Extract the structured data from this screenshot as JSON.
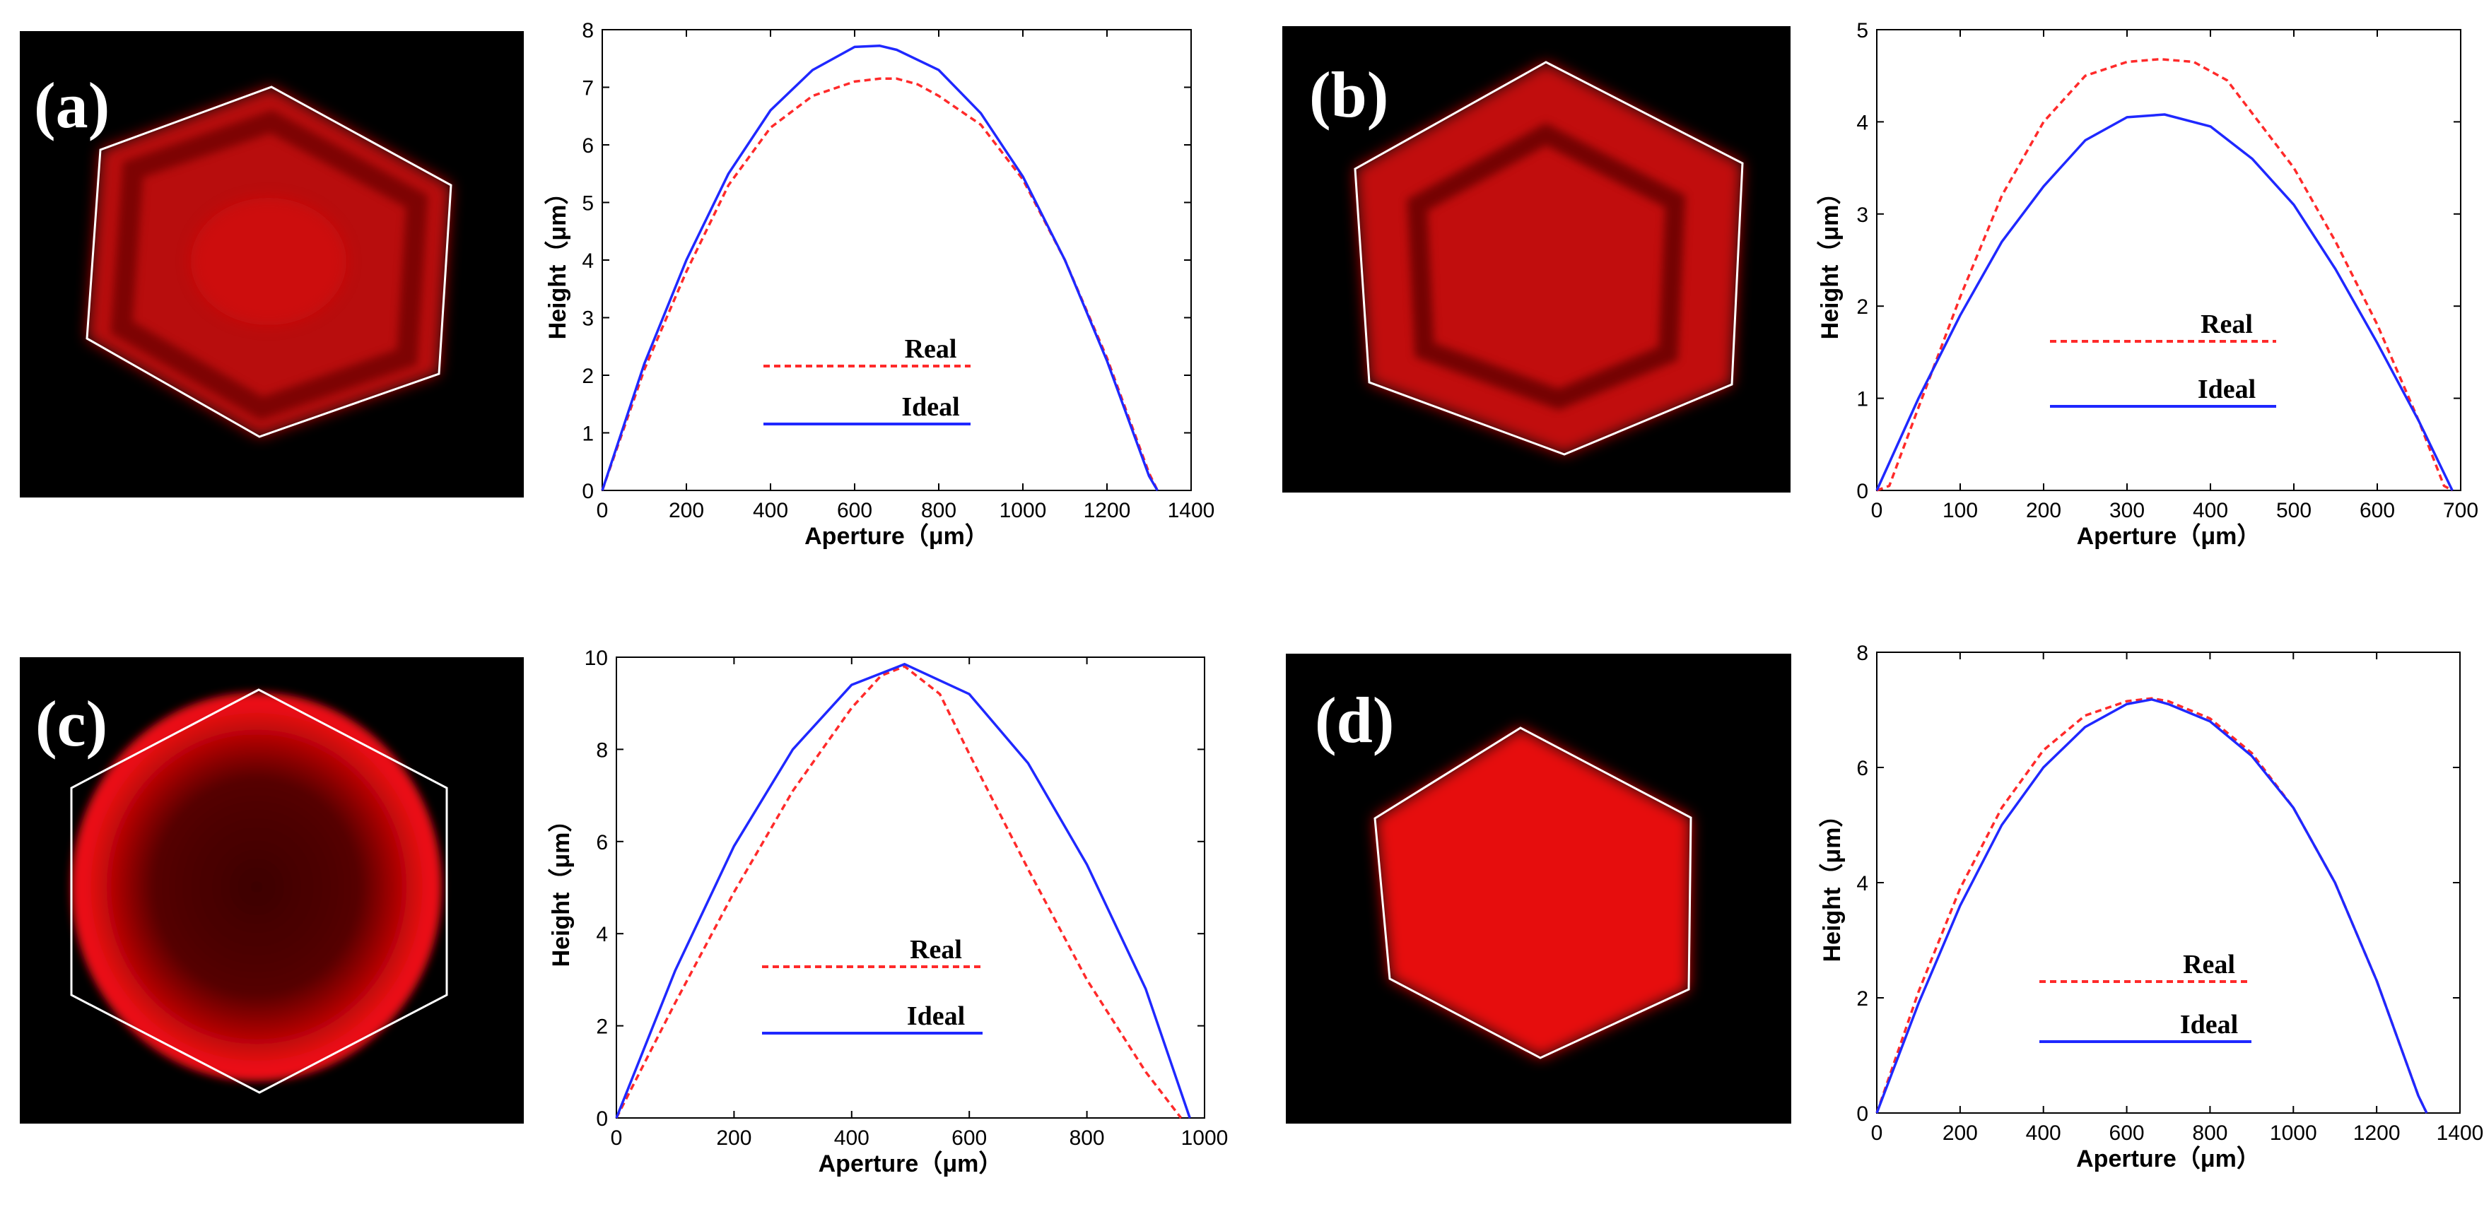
{
  "colors": {
    "real": "#ff2a2a",
    "ideal": "#1f28ff",
    "background": "#ffffff",
    "image_background": "#000000",
    "spot_red": "#e6070a"
  },
  "panels": [
    {
      "label": "(a)"
    },
    {
      "label": "(b)"
    },
    {
      "label": "(c)"
    },
    {
      "label": "(d)"
    }
  ],
  "chart_data": [
    {
      "panel": "(a)",
      "type": "line",
      "xlabel": "Aperture（μm）",
      "ylabel": "Height（μm）",
      "xlim": [
        0,
        1400
      ],
      "ylim": [
        0,
        8
      ],
      "xticks": [
        0,
        200,
        400,
        600,
        800,
        1000,
        1200,
        1400
      ],
      "yticks": [
        0,
        1,
        2,
        3,
        4,
        5,
        6,
        7,
        8
      ],
      "legend": {
        "entries": [
          "Real",
          "Ideal"
        ],
        "placement": "lower-center"
      },
      "series": [
        {
          "name": "Real",
          "style": "dashed",
          "x": [
            0,
            100,
            200,
            300,
            400,
            500,
            600,
            660,
            700,
            750,
            800,
            900,
            1000,
            1100,
            1200,
            1300,
            1320
          ],
          "y": [
            0,
            2.1,
            3.8,
            5.3,
            6.3,
            6.85,
            7.1,
            7.15,
            7.15,
            7.05,
            6.85,
            6.35,
            5.4,
            4.0,
            2.3,
            0.3,
            0
          ]
        },
        {
          "name": "Ideal",
          "style": "solid",
          "x": [
            0,
            100,
            200,
            300,
            400,
            500,
            600,
            660,
            700,
            800,
            900,
            1000,
            1100,
            1200,
            1300,
            1320
          ],
          "y": [
            0,
            2.2,
            4.0,
            5.5,
            6.6,
            7.3,
            7.7,
            7.72,
            7.65,
            7.3,
            6.55,
            5.45,
            4.0,
            2.25,
            0.25,
            0
          ]
        }
      ]
    },
    {
      "panel": "(b)",
      "type": "line",
      "xlabel": "Aperture（μm）",
      "ylabel": "Height（μm）",
      "xlim": [
        0,
        700
      ],
      "ylim": [
        0,
        5
      ],
      "xticks": [
        0,
        100,
        200,
        300,
        400,
        500,
        600,
        700
      ],
      "yticks": [
        0,
        1,
        2,
        3,
        4,
        5
      ],
      "legend": {
        "entries": [
          "Real",
          "Ideal"
        ],
        "placement": "lower-center"
      },
      "series": [
        {
          "name": "Real",
          "style": "dashed",
          "x": [
            0,
            15,
            50,
            100,
            150,
            200,
            250,
            300,
            340,
            380,
            420,
            500,
            550,
            600,
            650,
            680,
            690
          ],
          "y": [
            0,
            0.05,
            0.9,
            2.1,
            3.2,
            4.0,
            4.5,
            4.65,
            4.68,
            4.65,
            4.45,
            3.5,
            2.7,
            1.8,
            0.75,
            0.05,
            0
          ]
        },
        {
          "name": "Ideal",
          "style": "solid",
          "x": [
            0,
            50,
            100,
            150,
            200,
            250,
            300,
            345,
            400,
            450,
            500,
            550,
            600,
            650,
            690
          ],
          "y": [
            0,
            1.0,
            1.9,
            2.7,
            3.3,
            3.8,
            4.05,
            4.08,
            3.95,
            3.6,
            3.1,
            2.4,
            1.6,
            0.75,
            0
          ]
        }
      ]
    },
    {
      "panel": "(c)",
      "type": "line",
      "xlabel": "Aperture（μm）",
      "ylabel": "Height（μm）",
      "xlim": [
        0,
        1000
      ],
      "ylim": [
        0,
        10
      ],
      "xticks": [
        0,
        200,
        400,
        600,
        800,
        1000
      ],
      "yticks": [
        0,
        2,
        4,
        6,
        8,
        10
      ],
      "legend": {
        "entries": [
          "Real",
          "Ideal"
        ],
        "placement": "lower-center"
      },
      "series": [
        {
          "name": "Real",
          "style": "dashed",
          "x": [
            0,
            100,
            200,
            300,
            400,
            450,
            490,
            550,
            600,
            700,
            800,
            900,
            960
          ],
          "y": [
            0,
            2.5,
            4.9,
            7.1,
            8.9,
            9.6,
            9.8,
            9.2,
            7.9,
            5.4,
            3.0,
            1.0,
            0
          ]
        },
        {
          "name": "Ideal",
          "style": "solid",
          "x": [
            0,
            100,
            200,
            300,
            400,
            490,
            600,
            700,
            800,
            900,
            975
          ],
          "y": [
            0,
            3.2,
            5.9,
            8.0,
            9.4,
            9.85,
            9.2,
            7.7,
            5.5,
            2.8,
            0
          ]
        }
      ]
    },
    {
      "panel": "(d)",
      "type": "line",
      "xlabel": "Aperture（μm）",
      "ylabel": "Height（μm）",
      "xlim": [
        0,
        1400
      ],
      "ylim": [
        0,
        8
      ],
      "xticks": [
        0,
        200,
        400,
        600,
        800,
        1000,
        1200,
        1400
      ],
      "yticks": [
        0,
        2,
        4,
        6,
        8
      ],
      "legend": {
        "entries": [
          "Real",
          "Ideal"
        ],
        "placement": "lower-center"
      },
      "series": [
        {
          "name": "Real",
          "style": "dashed",
          "x": [
            0,
            100,
            200,
            300,
            400,
            500,
            600,
            660,
            700,
            800,
            900,
            1000,
            1100,
            1200,
            1300,
            1320
          ],
          "y": [
            0,
            2.1,
            3.9,
            5.3,
            6.3,
            6.9,
            7.15,
            7.2,
            7.15,
            6.85,
            6.25,
            5.3,
            4.0,
            2.3,
            0.3,
            0
          ]
        },
        {
          "name": "Ideal",
          "style": "solid",
          "x": [
            0,
            100,
            200,
            300,
            400,
            500,
            600,
            660,
            700,
            800,
            900,
            1000,
            1100,
            1200,
            1300,
            1320
          ],
          "y": [
            0,
            1.9,
            3.6,
            5.0,
            6.0,
            6.7,
            7.1,
            7.18,
            7.1,
            6.8,
            6.2,
            5.3,
            4.0,
            2.3,
            0.3,
            0
          ]
        }
      ]
    }
  ]
}
